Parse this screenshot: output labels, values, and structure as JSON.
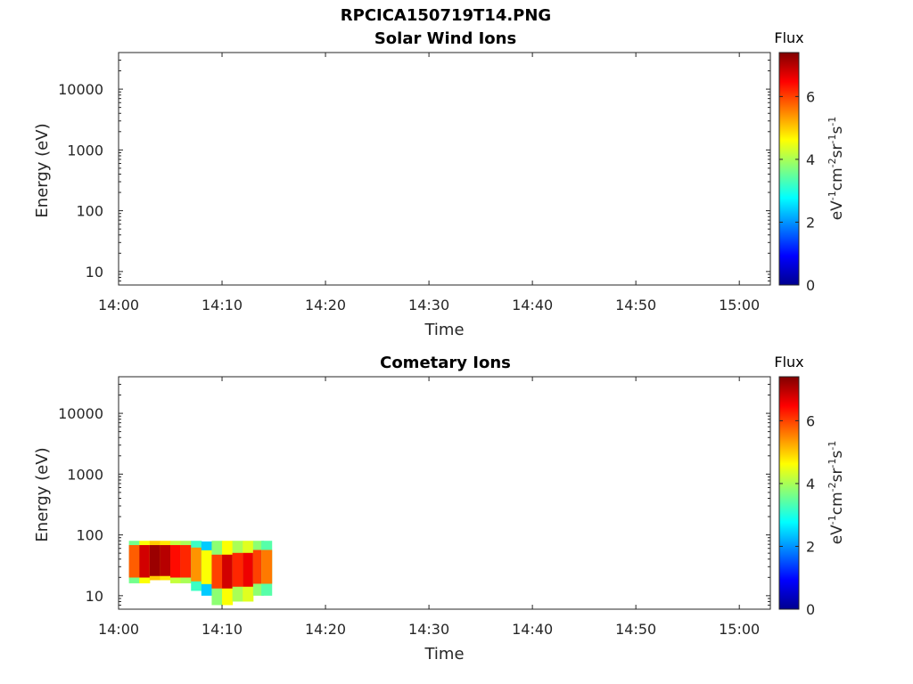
{
  "figure": {
    "title": "RPCICA150719T14.PNG"
  },
  "colorbar": {
    "label": "Flux",
    "unit_text": "eV",
    "unit_parts": [
      {
        "t": "eV",
        "sup": false
      },
      {
        "t": "-1",
        "sup": true
      },
      {
        "t": "cm",
        "sup": false
      },
      {
        "t": "-2",
        "sup": true
      },
      {
        "t": "sr",
        "sup": false
      },
      {
        "t": "-1",
        "sup": true
      },
      {
        "t": "s",
        "sup": false
      },
      {
        "t": "-1",
        "sup": true
      }
    ],
    "range": [
      0,
      7.4
    ],
    "ticks": [
      "0",
      "2",
      "4",
      "6"
    ],
    "tick_values": [
      0,
      2,
      4,
      6
    ],
    "colormap": "jet"
  },
  "chart_data": [
    {
      "type": "heatmap",
      "title": "Solar Wind Ions",
      "xlabel": "Time",
      "ylabel": "Energy (eV)",
      "xlim": [
        "14:00",
        "15:03"
      ],
      "ylim": [
        6,
        40000
      ],
      "yscale": "log",
      "xticks": [
        "14:00",
        "14:10",
        "14:20",
        "14:30",
        "14:40",
        "14:50",
        "15:00"
      ],
      "yticks": [
        "10",
        "100",
        "1000",
        "10000"
      ],
      "ytick_values": [
        10,
        100,
        1000,
        10000
      ],
      "data": []
    },
    {
      "type": "heatmap",
      "title": "Cometary Ions",
      "xlabel": "Time",
      "ylabel": "Energy (eV)",
      "xlim": [
        "14:00",
        "15:03"
      ],
      "ylim": [
        6,
        40000
      ],
      "yscale": "log",
      "xticks": [
        "14:00",
        "14:10",
        "14:20",
        "14:30",
        "14:40",
        "14:50",
        "15:00"
      ],
      "yticks": [
        "10",
        "100",
        "1000",
        "10000"
      ],
      "ytick_values": [
        10,
        100,
        1000,
        10000
      ],
      "data": [
        {
          "time": "14:01.5",
          "e_min": 16,
          "e_max": 80,
          "flux": 5.8
        },
        {
          "time": "14:02.5",
          "e_min": 16,
          "e_max": 80,
          "flux": 6.8
        },
        {
          "time": "14:03.5",
          "e_min": 18,
          "e_max": 80,
          "flux": 7.2
        },
        {
          "time": "14:04.5",
          "e_min": 18,
          "e_max": 80,
          "flux": 7.0
        },
        {
          "time": "14:05.5",
          "e_min": 16,
          "e_max": 80,
          "flux": 6.4
        },
        {
          "time": "14:06.5",
          "e_min": 16,
          "e_max": 80,
          "flux": 6.2
        },
        {
          "time": "14:07.5",
          "e_min": 12,
          "e_max": 80,
          "flux": 5.4
        },
        {
          "time": "14:08.5",
          "e_min": 10,
          "e_max": 78,
          "flux": 4.6
        },
        {
          "time": "14:09.5",
          "e_min": 7,
          "e_max": 80,
          "flux": 6.0
        },
        {
          "time": "14:10.5",
          "e_min": 7,
          "e_max": 80,
          "flux": 6.8
        },
        {
          "time": "14:11.5",
          "e_min": 8,
          "e_max": 80,
          "flux": 6.2
        },
        {
          "time": "14:12.5",
          "e_min": 8,
          "e_max": 80,
          "flux": 6.6
        },
        {
          "time": "14:13.5",
          "e_min": 10,
          "e_max": 80,
          "flux": 6.0
        },
        {
          "time": "14:14.3",
          "e_min": 10,
          "e_max": 80,
          "flux": 5.6
        }
      ]
    }
  ]
}
